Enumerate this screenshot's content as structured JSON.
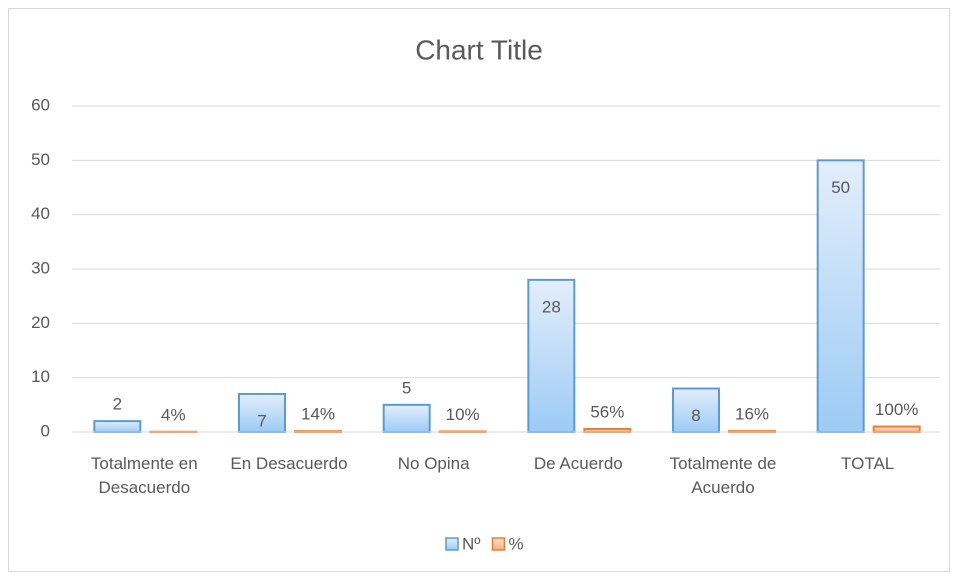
{
  "chart_data": {
    "type": "bar",
    "title": "Chart Title",
    "categories": [
      "Totalmente en Desacuerdo",
      "En Desacuerdo",
      "No Opina",
      "De Acuerdo",
      "Totalmente de Acuerdo",
      "TOTAL"
    ],
    "series": [
      {
        "name": "Nº",
        "color": "#5b9bd5",
        "values": [
          2,
          7,
          5,
          28,
          8,
          50
        ]
      },
      {
        "name": "%",
        "color": "#ed7d31",
        "values": [
          0.04,
          0.14,
          0.1,
          0.56,
          0.16,
          1
        ],
        "value_labels": [
          "4%",
          "14%",
          "10%",
          "56%",
          "16%",
          "100%"
        ]
      }
    ],
    "ylim": [
      0,
      60
    ],
    "yticks": [
      0,
      10,
      20,
      30,
      40,
      50,
      60
    ],
    "grid": true,
    "legend": "bottom"
  }
}
